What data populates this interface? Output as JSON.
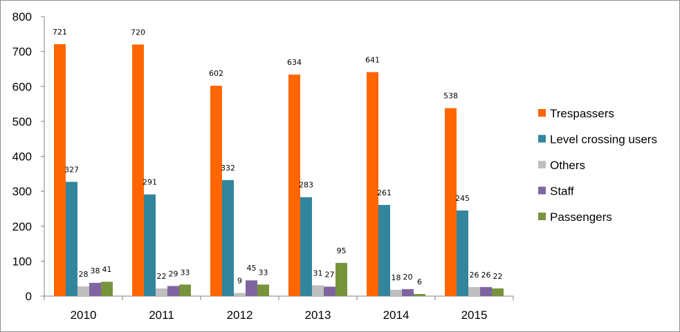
{
  "chart_data": {
    "type": "bar",
    "title": "",
    "xlabel": "",
    "ylabel": "",
    "categories": [
      "2010",
      "2011",
      "2012",
      "2013",
      "2014",
      "2015"
    ],
    "ylim": [
      0,
      800
    ],
    "yticks": [
      0,
      100,
      200,
      300,
      400,
      500,
      600,
      700,
      800
    ],
    "grid": false,
    "legend_position": "right",
    "series": [
      {
        "name": "Trespassers",
        "color": "#ff6600",
        "values": [
          721,
          720,
          602,
          634,
          641,
          538
        ]
      },
      {
        "name": "Level crossing users",
        "color": "#31859c",
        "values": [
          327,
          291,
          332,
          283,
          261,
          245
        ]
      },
      {
        "name": "Others",
        "color": "#bfbfbf",
        "values": [
          28,
          22,
          9,
          31,
          18,
          26
        ]
      },
      {
        "name": "Staff",
        "color": "#8064a2",
        "values": [
          38,
          29,
          45,
          27,
          20,
          26
        ]
      },
      {
        "name": "Passengers",
        "color": "#77933c",
        "values": [
          41,
          33,
          33,
          95,
          6,
          22
        ]
      }
    ]
  }
}
